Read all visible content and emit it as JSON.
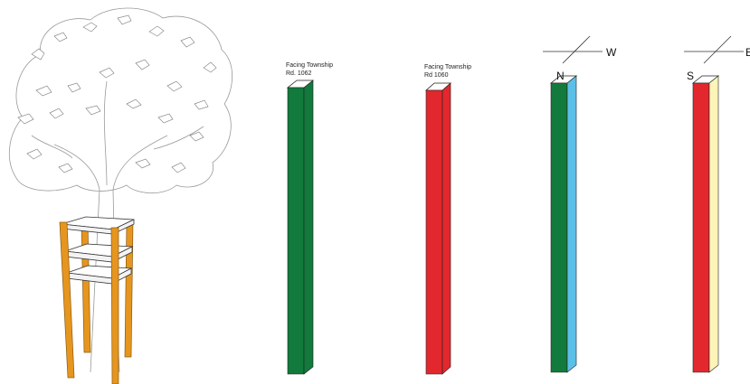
{
  "posts": [
    {
      "caption_line1": "Facing Township",
      "caption_line2": "Rd. 1062",
      "front_color": "#117a3c",
      "side_color": "#117a3c",
      "top_color": "#ffffff",
      "direction_left": "",
      "direction_right": ""
    },
    {
      "caption_line1": "Facing Township",
      "caption_line2": "Rd 1060",
      "front_color": "#e2282d",
      "side_color": "#e2282d",
      "top_color": "#ffffff",
      "direction_left": "",
      "direction_right": ""
    },
    {
      "caption_line1": "",
      "caption_line2": "",
      "front_color": "#117a3c",
      "side_color": "#5bc0e8",
      "top_color": "#ffffff",
      "direction_left": "N",
      "direction_right": "W"
    },
    {
      "caption_line1": "",
      "caption_line2": "",
      "front_color": "#e2282d",
      "side_color": "#fff4b8",
      "top_color": "#ffffff",
      "direction_left": "S",
      "direction_right": "E"
    }
  ],
  "tree_frame": {
    "wood_color": "#e6961e",
    "wood_edge": "#8a5a10",
    "trunk_color": "#ffffff"
  }
}
